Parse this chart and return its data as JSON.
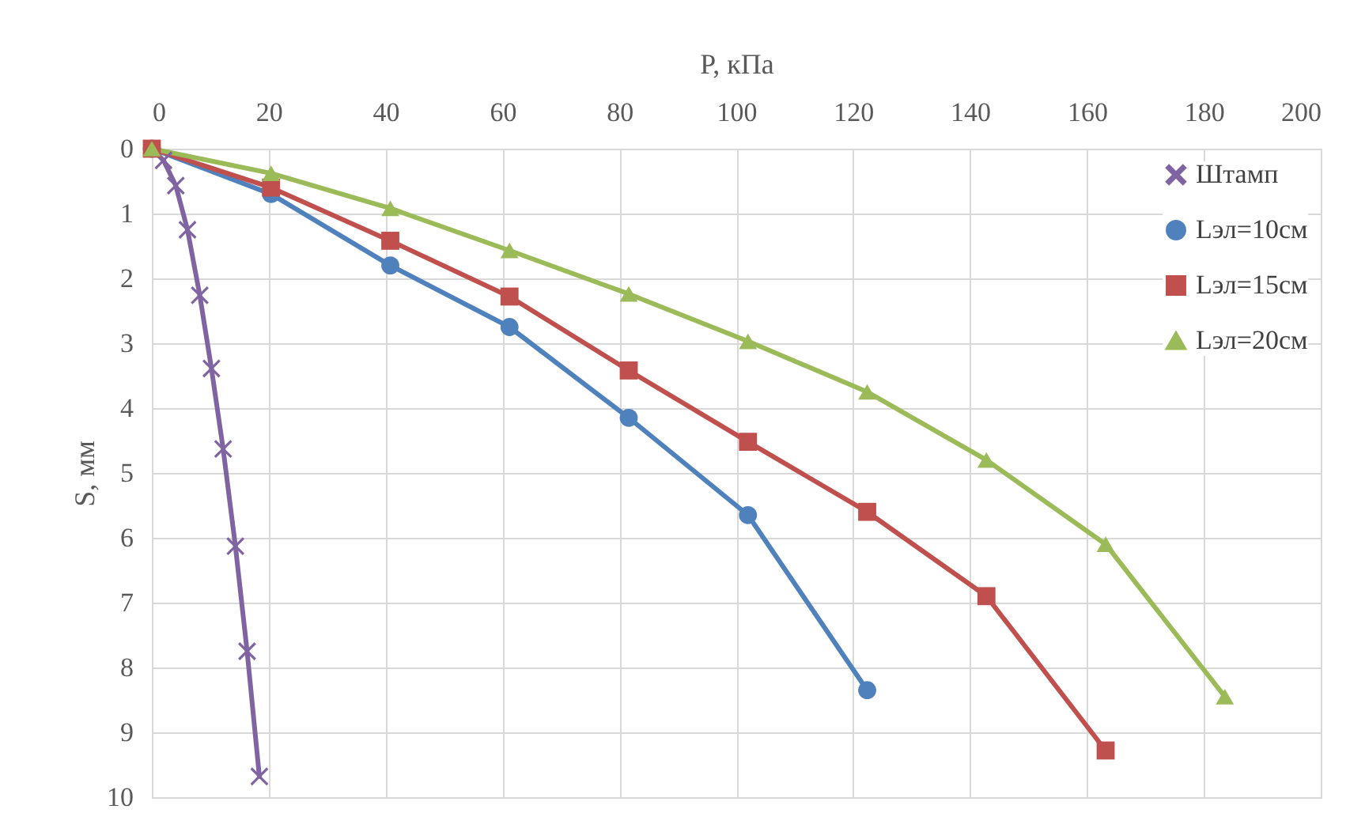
{
  "chart_data": {
    "type": "line",
    "xlabel": "P, кПа",
    "ylabel": "S, мм",
    "xlim": [
      0,
      200
    ],
    "xticks": [
      0,
      20,
      40,
      60,
      80,
      100,
      120,
      140,
      160,
      180,
      200
    ],
    "ylim": [
      10,
      0
    ],
    "yticks": [
      0,
      1,
      2,
      3,
      4,
      5,
      6,
      7,
      8,
      9,
      10
    ],
    "grid": true,
    "legend": "top right",
    "series": [
      {
        "name": "Штамп",
        "color": "#8064a2",
        "marker": "cross",
        "x": [
          0,
          2,
          4.1,
          6.1,
          8.2,
          10.2,
          12.2,
          14.3,
          16.3,
          18.4
        ],
        "values": [
          0,
          0.18,
          0.57,
          1.25,
          2.26,
          3.39,
          4.63,
          6.13,
          7.75,
          9.68
        ]
      },
      {
        "name": "Lэл=10см",
        "color": "#4f81bd",
        "marker": "circle",
        "x": [
          0,
          20.4,
          40.8,
          61.2,
          81.6,
          102,
          122.4
        ],
        "values": [
          0,
          0.7,
          1.8,
          2.75,
          4.15,
          5.65,
          8.35
        ]
      },
      {
        "name": "Lэл=15см",
        "color": "#c0504d",
        "marker": "square",
        "x": [
          0,
          20.4,
          40.8,
          61.2,
          81.6,
          102,
          122.4,
          142.8,
          163.2
        ],
        "values": [
          0,
          0.6,
          1.42,
          2.28,
          3.42,
          4.52,
          5.6,
          6.9,
          9.28
        ]
      },
      {
        "name": "Lэл=20см",
        "color": "#9bbb59",
        "marker": "triangle",
        "x": [
          0,
          20.4,
          40.8,
          61.2,
          81.6,
          102,
          122.4,
          142.8,
          163.2,
          183.6
        ],
        "values": [
          0,
          0.38,
          0.92,
          1.57,
          2.24,
          2.97,
          3.75,
          4.8,
          6.1,
          8.45
        ]
      }
    ]
  }
}
